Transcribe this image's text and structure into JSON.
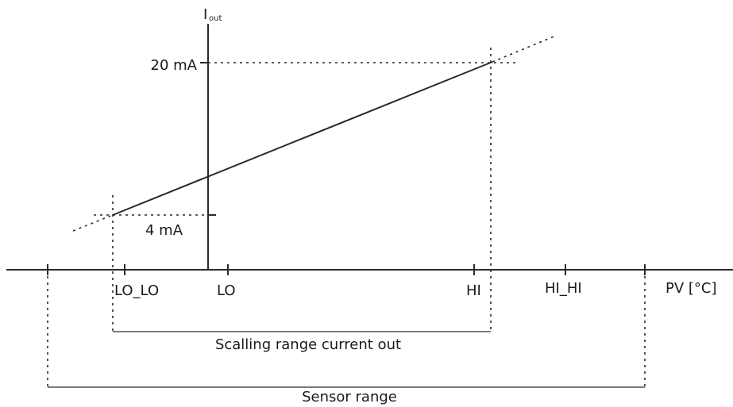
{
  "diagram": {
    "y_axis": {
      "label_main": "I",
      "label_sub": "out"
    },
    "x_axis": {
      "label": "PV [°C]"
    },
    "current_levels": {
      "high": "20 mA",
      "low": "4 mA"
    },
    "x_ticks": {
      "lo_lo": "LO_LO",
      "lo": "LO",
      "hi": "HI",
      "hi_hi": "HI_HI"
    },
    "ranges": {
      "scaling": "Scalling range current out",
      "sensor": "Sensor range"
    }
  }
}
